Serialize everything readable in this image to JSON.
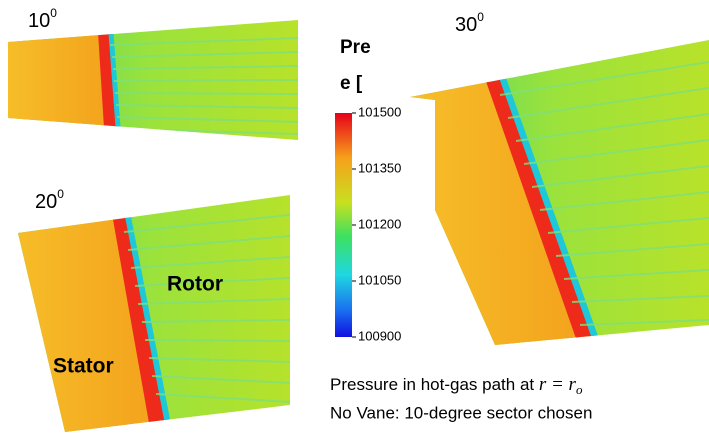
{
  "panels": [
    {
      "label": "10",
      "sup": "0"
    },
    {
      "label": "20",
      "sup": "0"
    },
    {
      "label": "30",
      "sup": "0"
    }
  ],
  "regions": {
    "stator": "Stator",
    "rotor": "Rotor"
  },
  "colorbar": {
    "title_lines": [
      "Pre",
      "e ["
    ],
    "lim": [
      100900,
      101500
    ],
    "ticks": [
      101500,
      101350,
      101200,
      101050,
      100900
    ]
  },
  "caption": {
    "line1": "Pressure in hot-gas path at ",
    "math": "r = r",
    "sub": "o",
    "line2": "No Vane: 10-degree sector chosen"
  }
}
